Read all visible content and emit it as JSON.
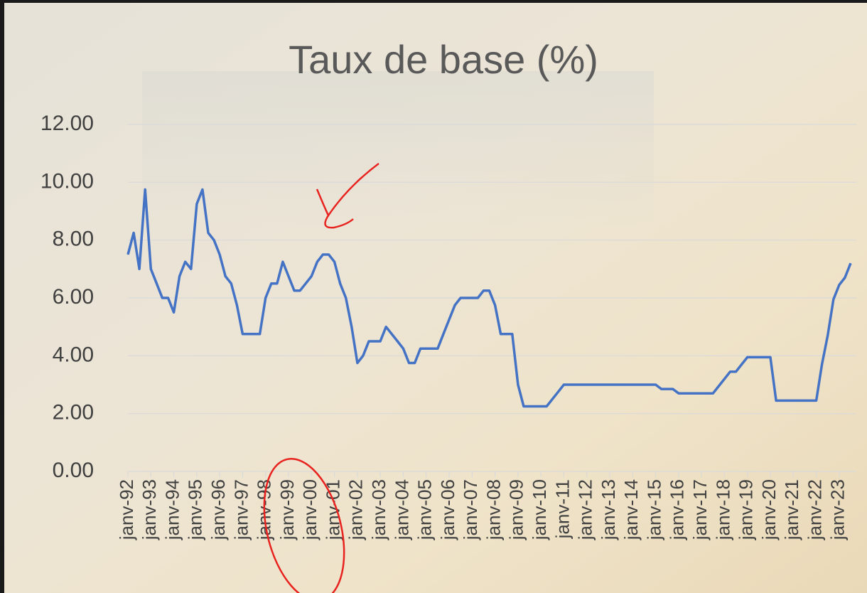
{
  "chart_data": {
    "type": "line",
    "title": "Taux de base (%)",
    "categories": [
      "janv-92",
      null,
      null,
      null,
      "janv-93",
      null,
      null,
      null,
      "janv-94",
      null,
      null,
      null,
      "janv-95",
      null,
      null,
      null,
      "janv-96",
      null,
      null,
      null,
      "janv-97",
      null,
      null,
      null,
      "janv-98",
      null,
      null,
      null,
      "janv-99",
      null,
      null,
      null,
      "janv-00",
      null,
      null,
      null,
      "janv-01",
      null,
      null,
      null,
      "janv-02",
      null,
      null,
      null,
      "janv-03",
      null,
      null,
      null,
      "janv-04",
      null,
      null,
      null,
      "janv-05",
      null,
      null,
      null,
      "janv-06",
      null,
      null,
      null,
      "janv-07",
      null,
      null,
      null,
      "janv-08",
      null,
      null,
      null,
      "janv-09",
      null,
      null,
      null,
      "janv-10",
      null,
      null,
      null,
      "janv-11",
      null,
      null,
      null,
      "janv-12",
      null,
      null,
      null,
      "janv-13",
      null,
      null,
      null,
      "janv-14",
      null,
      null,
      null,
      "janv-15",
      null,
      null,
      null,
      "janv-16",
      null,
      null,
      null,
      "janv-17",
      null,
      null,
      null,
      "janv-18",
      null,
      null,
      null,
      "janv-19",
      null,
      null,
      null,
      "janv-20",
      null,
      null,
      null,
      "janv-21",
      null,
      null,
      null,
      "janv-22",
      null,
      null,
      null,
      "janv-23",
      null,
      null
    ],
    "values": [
      7.5,
      8.25,
      7.0,
      9.75,
      7.0,
      6.5,
      6.0,
      6.0,
      5.5,
      6.75,
      7.25,
      7.0,
      9.25,
      9.75,
      8.25,
      8.0,
      7.5,
      6.75,
      6.5,
      5.75,
      4.75,
      4.75,
      4.75,
      4.75,
      6.0,
      6.5,
      6.5,
      7.25,
      6.75,
      6.25,
      6.25,
      6.5,
      6.75,
      7.25,
      7.5,
      7.5,
      7.25,
      6.5,
      6.0,
      5.0,
      3.75,
      4.0,
      4.5,
      4.5,
      4.5,
      5.0,
      4.75,
      4.5,
      4.25,
      3.75,
      3.75,
      4.25,
      4.25,
      4.25,
      4.25,
      4.75,
      5.25,
      5.75,
      6.0,
      6.0,
      6.0,
      6.0,
      6.25,
      6.25,
      5.75,
      4.75,
      4.75,
      4.75,
      3.0,
      2.25,
      2.25,
      2.25,
      2.25,
      2.25,
      2.5,
      2.75,
      3.0,
      3.0,
      3.0,
      3.0,
      3.0,
      3.0,
      3.0,
      3.0,
      3.0,
      3.0,
      3.0,
      3.0,
      3.0,
      3.0,
      3.0,
      3.0,
      3.0,
      2.85,
      2.85,
      2.85,
      2.7,
      2.7,
      2.7,
      2.7,
      2.7,
      2.7,
      2.7,
      2.95,
      3.2,
      3.45,
      3.45,
      3.7,
      3.95,
      3.95,
      3.95,
      3.95,
      3.95,
      2.45,
      2.45,
      2.45,
      2.45,
      2.45,
      2.45,
      2.45,
      2.45,
      3.7,
      4.7,
      5.95,
      6.45,
      6.7,
      7.2
    ],
    "color": "#4472c4",
    "ylim": [
      0,
      12
    ],
    "yticks": [
      {
        "value": 0,
        "label": "0.00"
      },
      {
        "value": 2,
        "label": "2.00"
      },
      {
        "value": 4,
        "label": "4.00"
      },
      {
        "value": 6,
        "label": "6.00"
      },
      {
        "value": 8,
        "label": "8.00"
      },
      {
        "value": 10,
        "label": "10.00"
      },
      {
        "value": 12,
        "label": "12.00"
      }
    ],
    "grid": true
  }
}
